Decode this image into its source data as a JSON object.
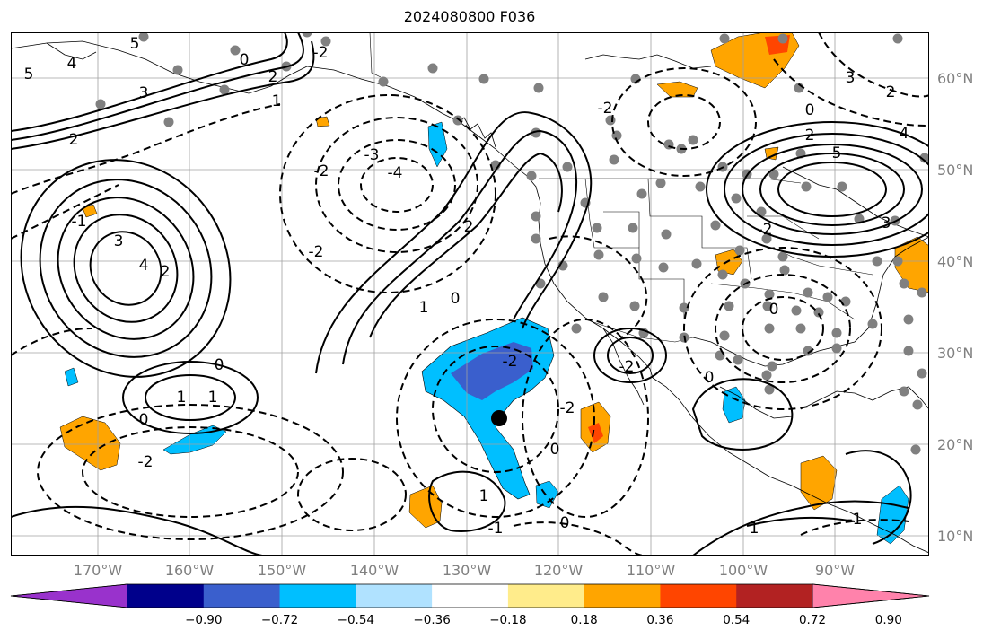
{
  "title": "2024080800 F036",
  "lat_labels": [
    "60°N",
    "50°N",
    "40°N",
    "30°N",
    "20°N",
    "10°N"
  ],
  "lon_labels": [
    "170°W",
    "160°W",
    "150°W",
    "140°W",
    "130°W",
    "120°W",
    "110°W",
    "100°W",
    "90°W"
  ],
  "colorbar": {
    "colors": [
      "#9932cc",
      "#00008b",
      "#3a5fcd",
      "#00bfff",
      "#b0e2ff",
      "#ffffff",
      "#ffec8b",
      "#ffa500",
      "#ff4500",
      "#b22222",
      "#ff82ab"
    ],
    "ticks": [
      "−0.90",
      "−0.72",
      "−0.54",
      "−0.36",
      "−0.18",
      "0.18",
      "0.36",
      "0.54",
      "0.72",
      "0.90"
    ]
  },
  "contour_labels": [
    {
      "text": "5"
    },
    {
      "text": "4"
    },
    {
      "text": "5"
    },
    {
      "text": "3"
    },
    {
      "text": "2"
    },
    {
      "text": "2"
    },
    {
      "text": "1"
    },
    {
      "text": "0"
    },
    {
      "text": "3"
    },
    {
      "text": "4"
    },
    {
      "text": "2"
    },
    {
      "text": "-1"
    },
    {
      "text": "-2"
    },
    {
      "text": "-3"
    },
    {
      "text": "-4"
    },
    {
      "text": "-2"
    },
    {
      "text": "-2"
    },
    {
      "text": "2"
    },
    {
      "text": "1"
    },
    {
      "text": "0"
    },
    {
      "text": "1"
    },
    {
      "text": "0"
    },
    {
      "text": "-2"
    },
    {
      "text": "0"
    },
    {
      "text": "-2"
    },
    {
      "text": "0"
    },
    {
      "text": "-2"
    },
    {
      "text": "-1"
    },
    {
      "text": "0"
    },
    {
      "text": "1"
    },
    {
      "text": "0"
    },
    {
      "text": "-2"
    },
    {
      "text": "3"
    },
    {
      "text": "2"
    },
    {
      "text": "0"
    },
    {
      "text": "2"
    },
    {
      "text": "5"
    },
    {
      "text": "4"
    },
    {
      "text": "3"
    },
    {
      "text": "-2"
    },
    {
      "text": "0"
    },
    {
      "text": "-1"
    },
    {
      "text": "1"
    },
    {
      "text": "-2"
    },
    {
      "text": "1"
    }
  ]
}
